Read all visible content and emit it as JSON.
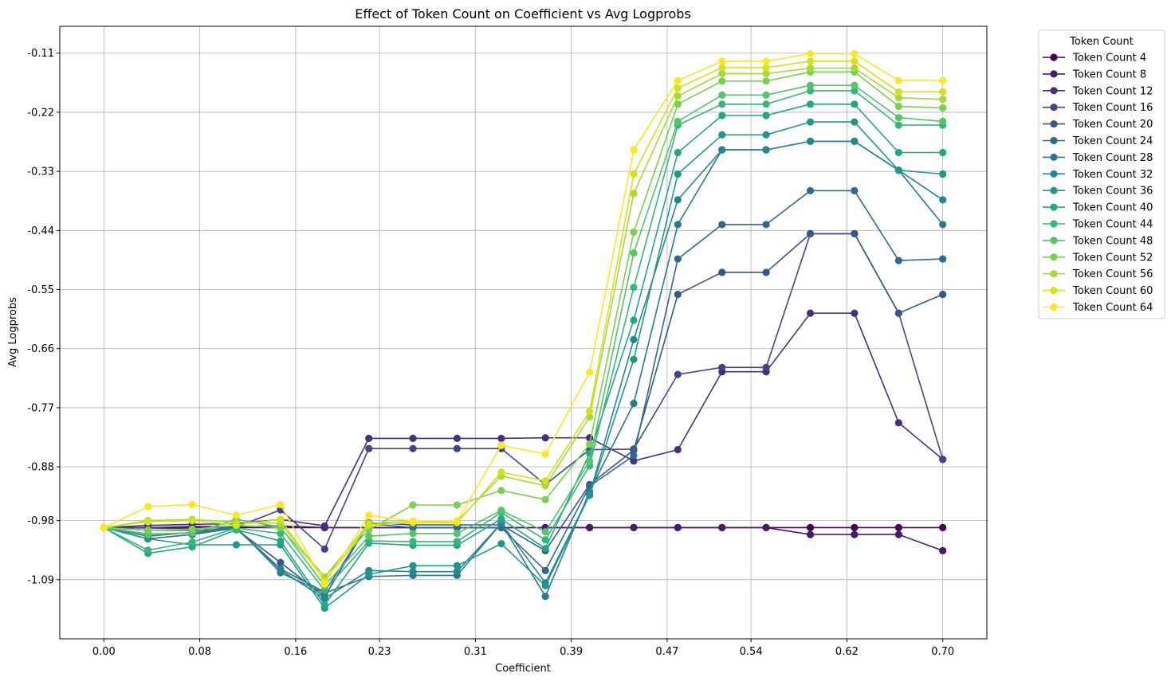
{
  "chart_data": {
    "type": "line",
    "title": "Effect of Token Count on Coefficient vs Avg Logprobs",
    "xlabel": "Coefficient",
    "ylabel": "Avg Logprobs",
    "legend_title": "Token Count",
    "legend_position": "outside-top-right",
    "grid": true,
    "xlim": [
      -0.0368,
      0.7368
    ],
    "ylim": [
      -1.2,
      -0.06
    ],
    "x_ticks": [
      "0.00",
      "0.08",
      "0.16",
      "0.23",
      "0.31",
      "0.39",
      "0.47",
      "0.54",
      "0.62",
      "0.70"
    ],
    "y_ticks": [
      "-0.11",
      "-0.22",
      "-0.33",
      "-0.44",
      "-0.55",
      "-0.66",
      "-0.77",
      "-0.88",
      "-0.98",
      "-1.09"
    ],
    "x": [
      0.0,
      0.0368,
      0.0737,
      0.1105,
      0.1474,
      0.1842,
      0.2211,
      0.2579,
      0.2947,
      0.3316,
      0.3684,
      0.4053,
      0.4421,
      0.4789,
      0.5158,
      0.5526,
      0.5895,
      0.6263,
      0.6632,
      0.7
    ],
    "series": [
      {
        "name": "Token Count 4",
        "color": "#440154",
        "values": [
          -0.993,
          -0.993,
          -0.993,
          -0.993,
          -0.993,
          -0.993,
          -0.993,
          -0.993,
          -0.993,
          -0.993,
          -0.993,
          -0.993,
          -0.993,
          -0.993,
          -0.993,
          -0.993,
          -0.993,
          -0.993,
          -0.993,
          -0.993
        ]
      },
      {
        "name": "Token Count 8",
        "color": "#481a6c",
        "values": [
          -0.993,
          -0.993,
          -0.991,
          -0.991,
          -0.99,
          -0.993,
          -0.993,
          -0.993,
          -0.993,
          -0.993,
          -0.993,
          -0.993,
          -0.993,
          -0.993,
          -0.993,
          -0.993,
          -1.006,
          -1.006,
          -1.006,
          -1.036
        ]
      },
      {
        "name": "Token Count 12",
        "color": "#472f7d",
        "values": [
          -0.993,
          -0.989,
          -0.987,
          -0.986,
          -0.978,
          -0.99,
          -0.827,
          -0.827,
          -0.827,
          -0.827,
          -0.826,
          -0.826,
          -0.869,
          -0.848,
          -0.703,
          -0.703,
          -0.594,
          -0.594,
          -0.798,
          -0.866
        ]
      },
      {
        "name": "Token Count 16",
        "color": "#414487",
        "values": [
          -0.993,
          -0.994,
          -0.995,
          -0.992,
          -0.96,
          -1.033,
          -0.846,
          -0.846,
          -0.846,
          -0.846,
          -0.913,
          -0.848,
          -0.847,
          -0.708,
          -0.695,
          -0.695,
          -0.446,
          -0.446,
          -0.594,
          -0.866
        ]
      },
      {
        "name": "Token Count 20",
        "color": "#39568c",
        "values": [
          -0.993,
          -0.998,
          -0.998,
          -0.996,
          -1.058,
          -1.122,
          -0.984,
          -0.988,
          -0.988,
          -0.988,
          -1.036,
          -0.913,
          -0.849,
          -0.559,
          -0.518,
          -0.518,
          -0.446,
          -0.446,
          -0.594,
          -0.559
        ]
      },
      {
        "name": "Token Count 24",
        "color": "#31688e",
        "values": [
          -0.993,
          -1.014,
          -1.006,
          -0.994,
          -1.07,
          -1.113,
          -0.986,
          -0.993,
          -0.993,
          -0.993,
          -1.073,
          -0.916,
          -0.859,
          -0.493,
          -0.429,
          -0.429,
          -0.366,
          -0.366,
          -0.496,
          -0.493
        ]
      },
      {
        "name": "Token Count 28",
        "color": "#2a788e",
        "values": [
          -0.993,
          -1.009,
          -1.002,
          -0.992,
          -1.077,
          -1.115,
          -1.084,
          -1.082,
          -1.082,
          -0.985,
          -1.121,
          -0.926,
          -0.762,
          -0.429,
          -0.29,
          -0.29,
          -0.274,
          -0.274,
          -0.328,
          -0.429
        ]
      },
      {
        "name": "Token Count 32",
        "color": "#23888e",
        "values": [
          -0.993,
          -1.005,
          -1.003,
          -0.995,
          -1.072,
          -1.125,
          -1.073,
          -1.075,
          -1.075,
          -0.985,
          -1.096,
          -0.932,
          -0.643,
          -0.383,
          -0.29,
          -0.29,
          -0.274,
          -0.274,
          -0.328,
          -0.383
        ]
      },
      {
        "name": "Token Count 36",
        "color": "#1f988b",
        "values": [
          -0.993,
          -1.014,
          -1.025,
          -1.025,
          -1.025,
          -1.143,
          -1.08,
          -1.064,
          -1.064,
          -1.023,
          -1.101,
          -0.933,
          -0.68,
          -0.335,
          -0.262,
          -0.262,
          -0.238,
          -0.238,
          -0.328,
          -0.335
        ]
      },
      {
        "name": "Token Count 40",
        "color": "#22a884",
        "values": [
          -0.993,
          -1.041,
          -1.029,
          -0.997,
          -1.018,
          -1.137,
          -1.022,
          -1.026,
          -1.026,
          -0.977,
          -1.032,
          -0.855,
          -0.607,
          -0.295,
          -0.226,
          -0.226,
          -0.205,
          -0.205,
          -0.295,
          -0.295
        ]
      },
      {
        "name": "Token Count 44",
        "color": "#35b779",
        "values": [
          -0.993,
          -1.035,
          -1.02,
          -0.994,
          -1.004,
          -1.11,
          -1.018,
          -1.019,
          -1.019,
          -0.965,
          -1.016,
          -0.878,
          -0.546,
          -0.244,
          -0.205,
          -0.205,
          -0.18,
          -0.18,
          -0.244,
          -0.244
        ]
      },
      {
        "name": "Token Count 48",
        "color": "#54c568",
        "values": [
          -0.993,
          -1.006,
          -1.003,
          -0.978,
          -0.992,
          -1.101,
          -1.009,
          -1.004,
          -1.004,
          -0.961,
          -1.001,
          -0.87,
          -0.482,
          -0.237,
          -0.188,
          -0.188,
          -0.17,
          -0.17,
          -0.23,
          -0.237
        ]
      },
      {
        "name": "Token Count 52",
        "color": "#7ad151",
        "values": [
          -0.993,
          -0.998,
          -0.996,
          -0.989,
          -0.993,
          -1.085,
          -0.997,
          -0.951,
          -0.951,
          -0.924,
          -0.941,
          -0.838,
          -0.443,
          -0.205,
          -0.162,
          -0.162,
          -0.145,
          -0.145,
          -0.209,
          -0.212
        ]
      },
      {
        "name": "Token Count 56",
        "color": "#a5db36",
        "values": [
          -0.993,
          -0.98,
          -0.978,
          -0.983,
          -0.985,
          -1.085,
          -0.985,
          -0.981,
          -0.981,
          -0.897,
          -0.915,
          -0.787,
          -0.371,
          -0.19,
          -0.148,
          -0.148,
          -0.138,
          -0.138,
          -0.193,
          -0.196
        ]
      },
      {
        "name": "Token Count 60",
        "color": "#d2e21b",
        "values": [
          -0.993,
          -0.982,
          -0.98,
          -0.988,
          -0.978,
          -1.093,
          -0.988,
          -0.984,
          -0.984,
          -0.89,
          -0.906,
          -0.777,
          -0.335,
          -0.175,
          -0.137,
          -0.137,
          -0.125,
          -0.125,
          -0.182,
          -0.182
        ]
      },
      {
        "name": "Token Count 64",
        "color": "#fde725",
        "values": [
          -0.993,
          -0.954,
          -0.95,
          -0.97,
          -0.95,
          -1.098,
          -0.97,
          -0.981,
          -0.981,
          -0.84,
          -0.856,
          -0.704,
          -0.29,
          -0.161,
          -0.125,
          -0.125,
          -0.111,
          -0.111,
          -0.161,
          -0.161
        ]
      }
    ]
  }
}
